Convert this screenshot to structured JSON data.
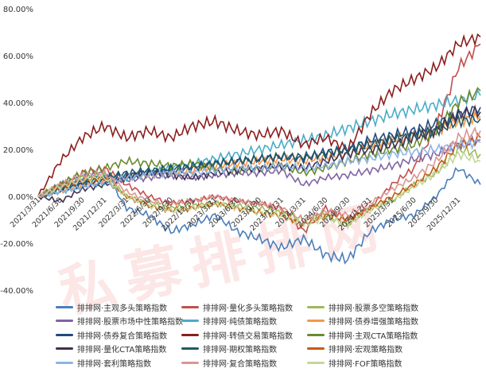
{
  "chart_data": {
    "type": "line",
    "title": "",
    "watermark": "私募排排网",
    "xlabel": "",
    "ylabel": "",
    "ylim": [
      -40,
      80
    ],
    "y_ticks": [
      "80.00%",
      "60.00%",
      "40.00%",
      "20.00%",
      "0.00%",
      "-20.00%",
      "-40.00%"
    ],
    "y_tick_values": [
      80,
      60,
      40,
      20,
      0,
      -20,
      -40
    ],
    "x_ticks": [
      "2021/3/31",
      "2021/6/30",
      "2021/9/30",
      "2021/12/31",
      "2022/3/31",
      "2022/6/30",
      "2022/9/30",
      "2022/12/31",
      "2023/3/31",
      "2023/6/30",
      "2023/9/30",
      "2023/12/31",
      "2024/3/31",
      "2024/6/30",
      "2024/9/30",
      "2024/12/31",
      "2025/3/31",
      "2025/6/30",
      "2025/9/30",
      "2025/12/31"
    ],
    "x_index": [
      0,
      1,
      2,
      3,
      4,
      5,
      6,
      7,
      8,
      9,
      10,
      11,
      12,
      13,
      14,
      15,
      16,
      17,
      18,
      19,
      20
    ],
    "grid": false,
    "legend_position": "bottom",
    "series": [
      {
        "name": "排排网·主观多头策略指数",
        "color": "#4a7ebb",
        "values": [
          0,
          5,
          8,
          10,
          -5,
          -8,
          -15,
          -12,
          -8,
          -15,
          -18,
          -22,
          -18,
          -25,
          -27,
          -15,
          -10,
          -8,
          0,
          12,
          5
        ]
      },
      {
        "name": "排排网·量化多头策略指数",
        "color": "#c0504d",
        "values": [
          0,
          5,
          10,
          12,
          5,
          0,
          -3,
          -2,
          0,
          -2,
          -3,
          -5,
          -15,
          -5,
          -10,
          -5,
          5,
          12,
          30,
          55,
          65
        ]
      },
      {
        "name": "排排网·股票多空策略指数",
        "color": "#9bbb59",
        "values": [
          0,
          5,
          8,
          9,
          0,
          -3,
          -5,
          -4,
          -3,
          -4,
          -5,
          -7,
          -10,
          -8,
          -12,
          -5,
          -2,
          5,
          10,
          20,
          18
        ]
      },
      {
        "name": "排排网·股票市场中性策略指数",
        "color": "#8064a2",
        "values": [
          0,
          3,
          6,
          8,
          7,
          8,
          9,
          8,
          9,
          10,
          10,
          11,
          5,
          8,
          9,
          11,
          13,
          16,
          18,
          22,
          24
        ]
      },
      {
        "name": "排排网·纯债策略指数",
        "color": "#4bacc6",
        "values": [
          0,
          2,
          4,
          6,
          8,
          10,
          12,
          14,
          16,
          18,
          20,
          22,
          24,
          26,
          29,
          32,
          35,
          37,
          39,
          41,
          43
        ]
      },
      {
        "name": "排排网·债券增强策略指数",
        "color": "#f79646",
        "values": [
          0,
          2,
          5,
          7,
          8,
          9,
          10,
          11,
          13,
          14,
          15,
          16,
          15,
          17,
          18,
          22,
          24,
          26,
          28,
          32,
          34
        ]
      },
      {
        "name": "排排网·债券复合策略指数",
        "color": "#1f497d",
        "values": [
          0,
          3,
          5,
          7,
          9,
          10,
          11,
          12,
          14,
          15,
          16,
          17,
          16,
          19,
          20,
          24,
          26,
          28,
          31,
          35,
          38
        ]
      },
      {
        "name": "排排网·转债交易策略指数",
        "color": "#8b1e1e",
        "values": [
          0,
          15,
          25,
          30,
          25,
          28,
          25,
          30,
          32,
          28,
          26,
          28,
          22,
          25,
          20,
          35,
          45,
          50,
          55,
          65,
          68
        ]
      },
      {
        "name": "排排网·主观CTA策略指数",
        "color": "#6a8a2e",
        "values": [
          0,
          5,
          10,
          12,
          15,
          14,
          13,
          14,
          12,
          11,
          12,
          13,
          10,
          12,
          15,
          18,
          20,
          22,
          28,
          40,
          45
        ]
      },
      {
        "name": "排排网·量化CTA策略指数",
        "color": "#3f3151",
        "values": [
          0,
          -2,
          3,
          5,
          8,
          10,
          9,
          8,
          10,
          11,
          12,
          13,
          12,
          15,
          18,
          20,
          22,
          25,
          28,
          35,
          36
        ]
      },
      {
        "name": "排排网·期权策略指数",
        "color": "#215968",
        "values": [
          0,
          3,
          6,
          8,
          10,
          11,
          12,
          13,
          14,
          15,
          16,
          17,
          17,
          18,
          20,
          22,
          24,
          26,
          28,
          32,
          33
        ]
      },
      {
        "name": "排排网·宏观策略指数",
        "color": "#c55a11",
        "values": [
          0,
          4,
          7,
          8,
          0,
          -4,
          -6,
          -5,
          -3,
          -5,
          -7,
          -8,
          -12,
          -8,
          -10,
          -5,
          0,
          5,
          12,
          22,
          25
        ]
      },
      {
        "name": "排排网·套利策略指数",
        "color": "#8eb4e3",
        "values": [
          0,
          2,
          4,
          6,
          8,
          9,
          10,
          10,
          11,
          12,
          12,
          13,
          12,
          13,
          15,
          16,
          18,
          19,
          20,
          22,
          23
        ]
      },
      {
        "name": "排排网·复合策略指数",
        "color": "#d99694",
        "values": [
          0,
          5,
          9,
          10,
          2,
          -2,
          -3,
          -2,
          0,
          -2,
          -3,
          -5,
          -10,
          -6,
          -8,
          -3,
          3,
          8,
          15,
          25,
          28
        ]
      },
      {
        "name": "排排网·FOF策略指数",
        "color": "#c3d69b",
        "values": [
          0,
          4,
          7,
          8,
          0,
          -4,
          -6,
          -5,
          -3,
          -5,
          -7,
          -8,
          -12,
          -9,
          -12,
          -6,
          -2,
          4,
          10,
          18,
          15
        ]
      }
    ]
  }
}
